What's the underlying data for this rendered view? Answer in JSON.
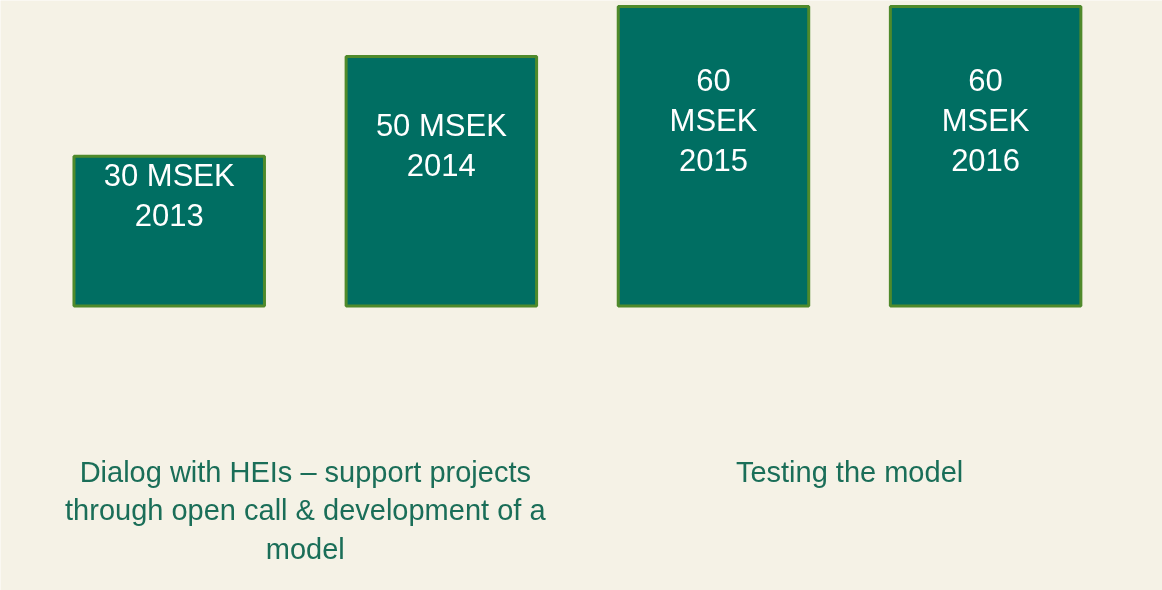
{
  "chart_data": {
    "type": "bar",
    "categories": [
      null,
      null,
      null,
      null
    ],
    "values": [
      30,
      50,
      60,
      60
    ],
    "value_labels": [
      "30 MSEK\n2013",
      "50 MSEK\n2014",
      "60\nMSEK\n2015",
      "60\nMSEK\n2016"
    ],
    "color": "#006e62",
    "tick_labels": false,
    "grid": false,
    "annotations": [
      "Dialog with HEIs – support projects through open call & development of a model",
      "Testing the model"
    ]
  }
}
